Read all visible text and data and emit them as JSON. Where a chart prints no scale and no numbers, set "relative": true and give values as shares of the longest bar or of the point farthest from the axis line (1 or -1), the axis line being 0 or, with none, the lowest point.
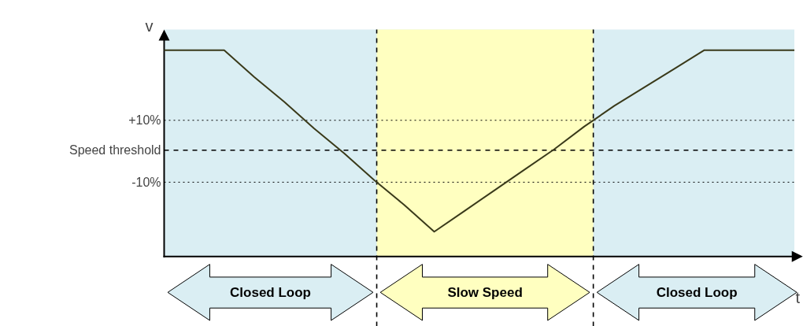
{
  "chart_data": {
    "type": "line",
    "relative": true,
    "xlabel": "t",
    "ylabel": "v",
    "grid": false,
    "line_style": "solid",
    "marker": "none",
    "categories": [
      null,
      null,
      null,
      null,
      null,
      null,
      null,
      null,
      null,
      null,
      null,
      null,
      null,
      null,
      null,
      null,
      null,
      null,
      null,
      null,
      null,
      null
    ],
    "series": [
      {
        "color": "#3a3a1a",
        "values": [
          1,
          1,
          1,
          0.87,
          0.75,
          0.62,
          0.5,
          0.37,
          0.25,
          0.12,
          0.22,
          0.32,
          0.42,
          0.52,
          0.63,
          0.73,
          0.82,
          0.91,
          1,
          1,
          1,
          1
        ]
      }
    ],
    "ref_lines": [
      {
        "axis": "y",
        "value": 0.66,
        "line_style": "dotted"
      },
      {
        "axis": "y",
        "value": 0.515,
        "line_style": "dashed"
      },
      {
        "axis": "y",
        "value": 0.36,
        "line_style": "dotted"
      }
    ],
    "annotations": [
      "+10%",
      "Speed threshold",
      "-10%",
      "Closed Loop",
      "Slow Speed",
      "Closed Loop"
    ]
  }
}
